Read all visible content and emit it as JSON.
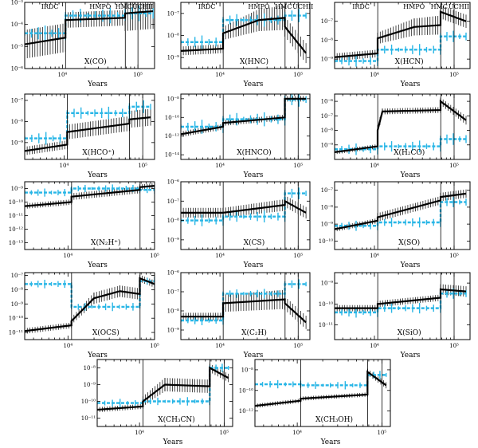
{
  "phases": [
    "IRDC",
    "HMPO",
    "HMC",
    "UCHII"
  ],
  "axis": {
    "xlabel": "Years",
    "x_scale": "log",
    "x_ticks": [
      10000,
      100000
    ],
    "x_tick_labels": [
      "10⁴",
      "10⁵"
    ]
  },
  "chart_data": [
    {
      "type": "line",
      "label": "X(CO)",
      "y_log_range": [
        -6,
        -3
      ],
      "y_ticks": [
        -6,
        -5,
        -4,
        -3
      ],
      "y_tick_labels": [
        "10⁻⁶",
        "10⁻⁵",
        "10⁻⁴",
        "10⁻³"
      ],
      "phase_labels_shown": true,
      "x_log_range": [
        3.5,
        5.22
      ],
      "boundaries": [
        11000,
        68000,
        100000
      ],
      "model": [
        [
          3.5,
          -4.9
        ],
        [
          4.04,
          -4.6
        ],
        [
          4.04,
          -3.8
        ],
        [
          4.83,
          -3.7
        ],
        [
          4.83,
          -3.5
        ],
        [
          5.0,
          -3.45
        ],
        [
          5.2,
          -3.4
        ]
      ],
      "model_err": [
        1.3,
        1.3,
        0.7,
        0.7,
        1.6,
        1.6,
        1.6
      ],
      "obs": [
        [
          3.5,
          -4.4
        ],
        [
          4.04,
          -4.4
        ],
        [
          4.04,
          -3.6
        ],
        [
          4.83,
          -3.6
        ],
        [
          4.83,
          -3.5
        ],
        [
          5.2,
          -3.5
        ]
      ],
      "obs_err": 0.7
    },
    {
      "type": "line",
      "label": "X(HNC)",
      "y_log_range": [
        -9.5,
        -6.5
      ],
      "y_ticks": [
        -9,
        -8,
        -7
      ],
      "y_tick_labels": [
        "10⁻⁹",
        "10⁻⁸",
        "10⁻⁷"
      ],
      "phase_labels_shown": true,
      "x_log_range": [
        3.5,
        5.15
      ],
      "boundaries": [
        11000,
        68000,
        100000
      ],
      "model": [
        [
          3.5,
          -8.7
        ],
        [
          4.04,
          -8.6
        ],
        [
          4.04,
          -7.9
        ],
        [
          4.5,
          -7.3
        ],
        [
          4.83,
          -7.2
        ],
        [
          4.83,
          -7.6
        ],
        [
          5.1,
          -8.8
        ]
      ],
      "model_err": [
        0.4,
        0.4,
        0.6,
        1.0,
        1.1,
        0.9,
        0.9
      ],
      "obs": [
        [
          3.5,
          -8.3
        ],
        [
          4.04,
          -8.3
        ],
        [
          4.04,
          -7.3
        ],
        [
          4.83,
          -7.3
        ],
        [
          4.83,
          -7.1
        ],
        [
          5.1,
          -7.1
        ]
      ],
      "obs_err": 0.6
    },
    {
      "type": "line",
      "label": "X(HCN)",
      "y_log_range": [
        -9.5,
        -6
      ],
      "y_ticks": [
        -9,
        -8,
        -7
      ],
      "y_tick_labels": [
        "10⁻⁹",
        "10⁻⁸",
        "10⁻⁷"
      ],
      "phase_labels_shown": true,
      "x_log_range": [
        3.5,
        5.2
      ],
      "boundaries": [
        11000,
        68000,
        100000
      ],
      "model": [
        [
          3.5,
          -8.9
        ],
        [
          4.04,
          -8.7
        ],
        [
          4.04,
          -7.9
        ],
        [
          4.5,
          -7.3
        ],
        [
          4.83,
          -7.2
        ],
        [
          4.83,
          -6.5
        ],
        [
          5.15,
          -7.0
        ]
      ],
      "model_err": [
        0.4,
        0.4,
        0.6,
        0.9,
        1.0,
        0.7,
        0.7
      ],
      "obs": [
        [
          3.5,
          -9.1
        ],
        [
          4.04,
          -9.1
        ],
        [
          4.04,
          -8.5
        ],
        [
          4.83,
          -8.5
        ],
        [
          4.83,
          -7.8
        ],
        [
          5.15,
          -7.8
        ]
      ],
      "obs_err": 0.6
    },
    {
      "type": "line",
      "label": "X(HCO⁺)",
      "y_log_range": [
        -9.8,
        -6.7
      ],
      "y_ticks": [
        -9,
        -8,
        -7
      ],
      "y_tick_labels": [
        "10⁻⁹",
        "10⁻⁸",
        "10⁻⁷"
      ],
      "phase_labels_shown": false,
      "x_log_range": [
        3.5,
        5.15
      ],
      "boundaries": [
        11000,
        68000,
        100000
      ],
      "model": [
        [
          3.5,
          -9.4
        ],
        [
          4.04,
          -9.1
        ],
        [
          4.04,
          -8.5
        ],
        [
          4.83,
          -8.1
        ],
        [
          4.83,
          -7.9
        ],
        [
          5.1,
          -7.8
        ]
      ],
      "model_err": [
        0.4,
        0.4,
        0.7,
        0.7,
        0.8,
        0.8
      ],
      "obs": [
        [
          3.5,
          -8.8
        ],
        [
          4.04,
          -8.8
        ],
        [
          4.04,
          -7.6
        ],
        [
          4.83,
          -7.6
        ],
        [
          4.83,
          -7.3
        ],
        [
          5.1,
          -7.3
        ]
      ],
      "obs_err": 0.6
    },
    {
      "type": "line",
      "label": "X(HNCO)",
      "y_log_range": [
        -14.5,
        -7.5
      ],
      "y_ticks": [
        -14,
        -12,
        -10,
        -8
      ],
      "y_tick_labels": [
        "10⁻¹⁴",
        "10⁻¹²",
        "10⁻¹⁰",
        "10⁻⁸"
      ],
      "phase_labels_shown": false,
      "x_log_range": [
        3.5,
        5.15
      ],
      "boundaries": [
        11000,
        68000,
        100000
      ],
      "model": [
        [
          3.5,
          -11.8
        ],
        [
          4.04,
          -11.0
        ],
        [
          4.04,
          -10.6
        ],
        [
          4.83,
          -10.0
        ],
        [
          4.83,
          -8.0
        ],
        [
          5.1,
          -8.0
        ]
      ],
      "model_err": [
        0.6,
        0.6,
        0.6,
        0.6,
        0.6,
        0.6
      ],
      "obs": [
        [
          3.5,
          -11.0
        ],
        [
          4.04,
          -11.0
        ],
        [
          4.04,
          -10.2
        ],
        [
          4.83,
          -10.2
        ],
        [
          4.83,
          -8.1
        ],
        [
          5.1,
          -8.1
        ]
      ],
      "obs_err": 1.5
    },
    {
      "type": "line",
      "label": "X(H₂CO)",
      "y_log_range": [
        -10,
        -5.5
      ],
      "y_ticks": [
        -9,
        -8,
        -7,
        -6
      ],
      "y_tick_labels": [
        "10⁻⁹",
        "10⁻⁸",
        "10⁻⁷",
        "10⁻⁶"
      ],
      "phase_labels_shown": false,
      "x_log_range": [
        3.5,
        5.2
      ],
      "boundaries": [
        11000,
        68000,
        100000
      ],
      "model": [
        [
          3.5,
          -9.5
        ],
        [
          4.04,
          -9.1
        ],
        [
          4.04,
          -8.0
        ],
        [
          4.1,
          -6.7
        ],
        [
          4.83,
          -6.6
        ],
        [
          4.83,
          -6.0
        ],
        [
          5.15,
          -7.3
        ]
      ],
      "model_err": [
        0.3,
        0.3,
        0.7,
        0.4,
        0.4,
        0.5,
        0.6
      ],
      "obs": [
        [
          3.5,
          -9.3
        ],
        [
          4.04,
          -9.3
        ],
        [
          4.04,
          -9.1
        ],
        [
          4.83,
          -9.1
        ],
        [
          4.83,
          -8.6
        ],
        [
          5.15,
          -8.6
        ]
      ],
      "obs_err": 0.8
    },
    {
      "type": "line",
      "label": "X(N₂H⁺)",
      "y_log_range": [
        -13.5,
        -8.5
      ],
      "y_ticks": [
        -13,
        -12,
        -11,
        -10,
        -9
      ],
      "y_tick_labels": [
        "10⁻¹³",
        "10⁻¹²",
        "10⁻¹¹",
        "10⁻¹⁰",
        "10⁻⁹"
      ],
      "phase_labels_shown": false,
      "x_log_range": [
        3.5,
        5.0
      ],
      "boundaries": [
        11000,
        68000,
        100000
      ],
      "model": [
        [
          3.5,
          -10.3
        ],
        [
          4.04,
          -10.0
        ],
        [
          4.04,
          -9.6
        ],
        [
          4.83,
          -9.1
        ],
        [
          4.83,
          -8.9
        ],
        [
          5.0,
          -8.8
        ]
      ],
      "model_err": [
        0.4,
        0.4,
        0.5,
        0.5,
        0.4,
        0.4
      ],
      "obs": [
        [
          3.5,
          -9.3
        ],
        [
          4.04,
          -9.3
        ],
        [
          4.04,
          -9.0
        ],
        [
          4.83,
          -9.0
        ],
        [
          4.83,
          -9.1
        ],
        [
          5.0,
          -9.1
        ]
      ],
      "obs_err": 0.6
    },
    {
      "type": "line",
      "label": "X(CS)",
      "y_log_range": [
        -9.5,
        -6
      ],
      "y_ticks": [
        -9,
        -8,
        -7,
        -6
      ],
      "y_tick_labels": [
        "10⁻⁹",
        "10⁻⁸",
        "10⁻⁷",
        "10⁻⁶"
      ],
      "phase_labels_shown": false,
      "x_log_range": [
        3.5,
        5.15
      ],
      "boundaries": [
        11000,
        68000,
        100000
      ],
      "model": [
        [
          3.5,
          -7.6
        ],
        [
          4.04,
          -7.6
        ],
        [
          4.04,
          -7.6
        ],
        [
          4.83,
          -7.2
        ],
        [
          4.83,
          -7.0
        ],
        [
          5.1,
          -7.6
        ]
      ],
      "model_err": [
        0.5,
        0.5,
        0.5,
        0.6,
        0.6,
        0.6
      ],
      "obs": [
        [
          3.5,
          -8.0
        ],
        [
          4.04,
          -8.0
        ],
        [
          4.04,
          -7.8
        ],
        [
          4.83,
          -7.8
        ],
        [
          4.83,
          -6.6
        ],
        [
          5.1,
          -6.6
        ]
      ],
      "obs_err": 0.6
    },
    {
      "type": "line",
      "label": "X(SO)",
      "y_log_range": [
        -10.5,
        -6.5
      ],
      "y_ticks": [
        -10,
        -9,
        -8,
        -7
      ],
      "y_tick_labels": [
        "10⁻¹⁰",
        "10⁻⁹",
        "10⁻⁸",
        "10⁻⁷"
      ],
      "phase_labels_shown": false,
      "x_log_range": [
        3.5,
        5.2
      ],
      "boundaries": [
        11000,
        68000,
        100000
      ],
      "model": [
        [
          3.5,
          -9.3
        ],
        [
          4.04,
          -8.8
        ],
        [
          4.04,
          -8.6
        ],
        [
          4.83,
          -7.6
        ],
        [
          4.83,
          -7.4
        ],
        [
          5.15,
          -7.2
        ]
      ],
      "model_err": [
        0.3,
        0.3,
        0.5,
        0.5,
        0.5,
        0.5
      ],
      "obs": [
        [
          3.5,
          -9.1
        ],
        [
          4.04,
          -9.1
        ],
        [
          4.04,
          -8.9
        ],
        [
          4.83,
          -8.9
        ],
        [
          4.83,
          -7.7
        ],
        [
          5.15,
          -7.7
        ]
      ],
      "obs_err": 0.6
    },
    {
      "type": "line",
      "label": "X(OCS)",
      "y_log_range": [
        -11.5,
        -6.8
      ],
      "y_ticks": [
        -11,
        -10,
        -9,
        -8,
        -7
      ],
      "y_tick_labels": [
        "10⁻¹¹",
        "10⁻¹⁰",
        "10⁻⁹",
        "10⁻⁸",
        "10⁻⁷"
      ],
      "phase_labels_shown": false,
      "x_log_range": [
        3.5,
        5.0
      ],
      "boundaries": [
        11000,
        68000,
        100000
      ],
      "model": [
        [
          3.5,
          -10.9
        ],
        [
          4.04,
          -10.5
        ],
        [
          4.04,
          -10.2
        ],
        [
          4.3,
          -8.6
        ],
        [
          4.6,
          -8.1
        ],
        [
          4.83,
          -8.3
        ],
        [
          4.83,
          -7.2
        ],
        [
          5.0,
          -7.6
        ]
      ],
      "model_err": [
        0.4,
        0.4,
        0.5,
        0.8,
        0.8,
        0.8,
        0.5,
        0.5
      ],
      "obs": [
        [
          3.5,
          -7.6
        ],
        [
          4.04,
          -7.6
        ],
        [
          4.04,
          -9.2
        ],
        [
          4.83,
          -9.2
        ],
        [
          4.83,
          -7.4
        ],
        [
          5.0,
          -7.4
        ]
      ],
      "obs_err": 0.6
    },
    {
      "type": "line",
      "label": "X(C₂H)",
      "y_log_range": [
        -9.5,
        -6
      ],
      "y_ticks": [
        -9,
        -8,
        -7,
        -6
      ],
      "y_tick_labels": [
        "10⁻⁹",
        "10⁻⁸",
        "10⁻⁷",
        "10⁻⁶"
      ],
      "phase_labels_shown": false,
      "x_log_range": [
        3.5,
        5.15
      ],
      "boundaries": [
        11000,
        68000,
        100000
      ],
      "model": [
        [
          3.5,
          -8.3
        ],
        [
          4.04,
          -8.3
        ],
        [
          4.04,
          -7.6
        ],
        [
          4.83,
          -7.4
        ],
        [
          4.83,
          -7.6
        ],
        [
          5.1,
          -8.6
        ]
      ],
      "model_err": [
        0.4,
        0.4,
        0.9,
        1.0,
        0.7,
        0.7
      ],
      "obs": [
        [
          3.5,
          -8.5
        ],
        [
          4.04,
          -8.5
        ],
        [
          4.04,
          -7.1
        ],
        [
          4.83,
          -7.1
        ],
        [
          4.83,
          -6.6
        ],
        [
          5.1,
          -6.6
        ]
      ],
      "obs_err": 0.5
    },
    {
      "type": "line",
      "label": "X(SiO)",
      "y_log_range": [
        -11.7,
        -8.5
      ],
      "y_ticks": [
        -11,
        -10,
        -9
      ],
      "y_tick_labels": [
        "10⁻¹¹",
        "10⁻¹⁰",
        "10⁻⁹"
      ],
      "phase_labels_shown": false,
      "x_log_range": [
        3.5,
        5.2
      ],
      "boundaries": [
        11000,
        68000,
        100000
      ],
      "model": [
        [
          3.5,
          -10.2
        ],
        [
          4.04,
          -10.2
        ],
        [
          4.04,
          -10.0
        ],
        [
          4.83,
          -9.7
        ],
        [
          4.83,
          -9.3
        ],
        [
          5.15,
          -9.4
        ]
      ],
      "model_err": [
        0.3,
        0.3,
        0.3,
        0.3,
        0.5,
        0.5
      ],
      "obs": [
        [
          3.5,
          -10.4
        ],
        [
          4.04,
          -10.4
        ],
        [
          4.04,
          -10.2
        ],
        [
          4.83,
          -10.2
        ],
        [
          4.83,
          -9.5
        ],
        [
          5.15,
          -9.5
        ]
      ],
      "obs_err": 0.5
    },
    {
      "type": "line",
      "label": "X(CH₃CN)",
      "y_log_range": [
        -11.5,
        -7.5
      ],
      "y_ticks": [
        -11,
        -10,
        -9,
        -8
      ],
      "y_tick_labels": [
        "10⁻¹¹",
        "10⁻¹⁰",
        "10⁻⁹",
        "10⁻⁸"
      ],
      "phase_labels_shown": false,
      "x_log_range": [
        3.5,
        5.1
      ],
      "boundaries": [
        11000,
        68000,
        100000
      ],
      "model": [
        [
          3.5,
          -10.5
        ],
        [
          4.04,
          -10.3
        ],
        [
          4.04,
          -10.0
        ],
        [
          4.3,
          -9.0
        ],
        [
          4.83,
          -9.1
        ],
        [
          4.83,
          -8.0
        ],
        [
          5.05,
          -8.6
        ]
      ],
      "model_err": [
        0.3,
        0.3,
        0.6,
        0.8,
        0.8,
        0.5,
        0.5
      ],
      "obs": [
        [
          3.5,
          -10.1
        ],
        [
          4.04,
          -10.1
        ],
        [
          4.04,
          -10.0
        ],
        [
          4.83,
          -10.0
        ],
        [
          4.83,
          -8.0
        ],
        [
          5.05,
          -8.0
        ]
      ],
      "obs_err": 0.5
    },
    {
      "type": "line",
      "label": "X(CH₃OH)",
      "y_log_range": [
        -13.5,
        -7
      ],
      "y_ticks": [
        -12,
        -10,
        -8
      ],
      "y_tick_labels": [
        "10⁻¹²",
        "10⁻¹⁰",
        "10⁻⁸"
      ],
      "phase_labels_shown": false,
      "x_log_range": [
        3.5,
        5.1
      ],
      "boundaries": [
        11000,
        68000,
        100000
      ],
      "model": [
        [
          3.5,
          -11.5
        ],
        [
          4.04,
          -11.0
        ],
        [
          4.04,
          -10.8
        ],
        [
          4.83,
          -10.4
        ],
        [
          4.83,
          -8.2
        ],
        [
          5.05,
          -9.5
        ]
      ],
      "model_err": [
        0.4,
        0.4,
        0.4,
        0.4,
        0.6,
        0.6
      ],
      "obs": [
        [
          3.5,
          -9.4
        ],
        [
          4.04,
          -9.4
        ],
        [
          4.04,
          -9.5
        ],
        [
          4.83,
          -9.5
        ],
        [
          4.83,
          -8.5
        ],
        [
          5.05,
          -8.5
        ]
      ],
      "obs_err": 0.8
    }
  ]
}
